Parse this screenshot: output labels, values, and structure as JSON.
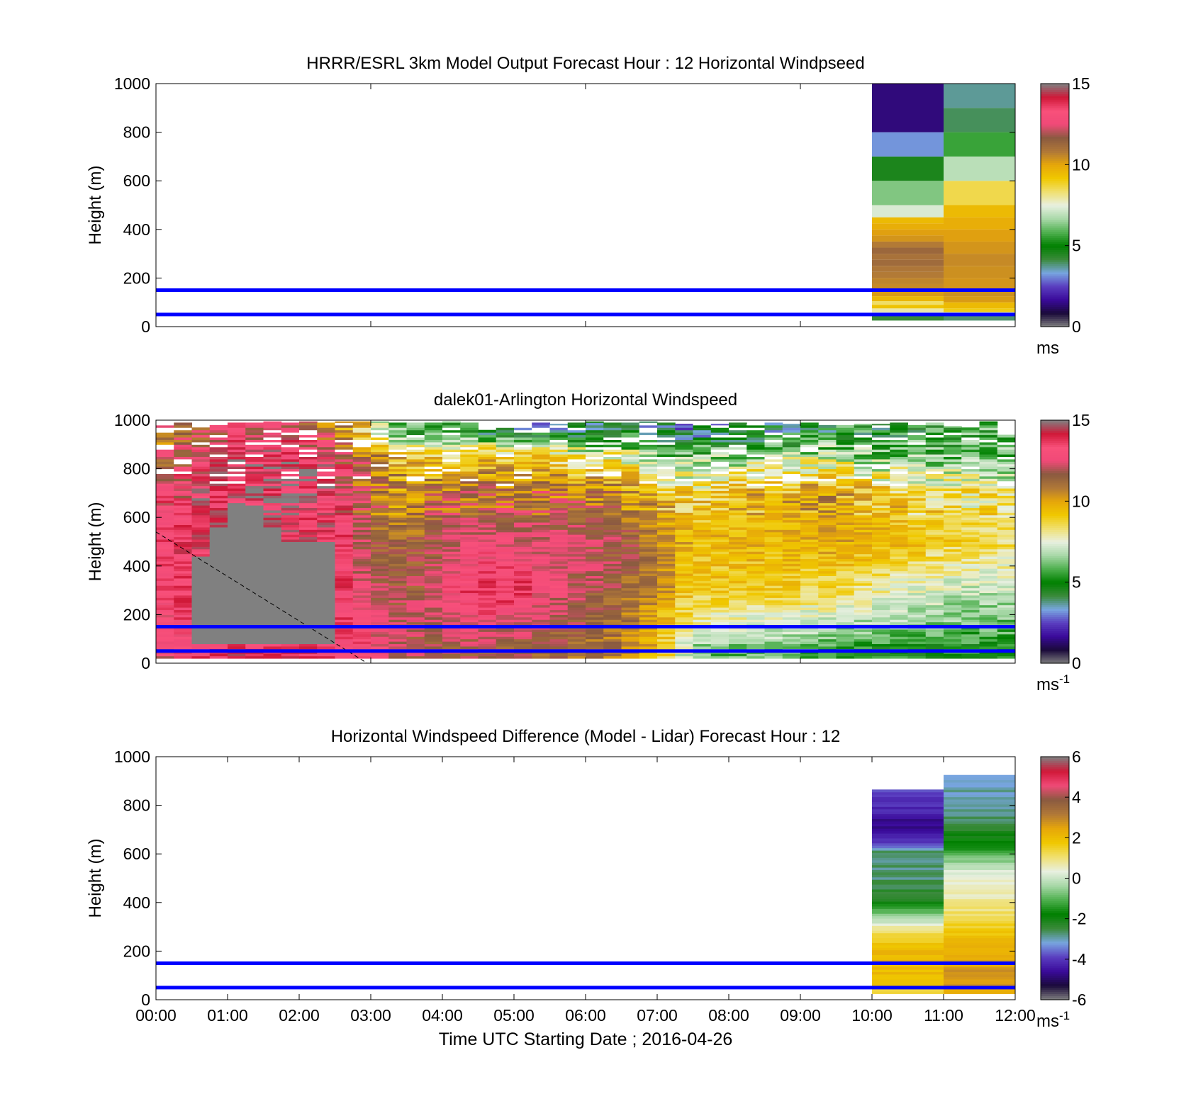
{
  "colors": {
    "speed_scale": [
      "#808080",
      "#1a0a3a",
      "#3a0a9a",
      "#5a3ec0",
      "#78a6e0",
      "#3a8a3a",
      "#008000",
      "#4fb04f",
      "#a8d8a8",
      "#e8f0e0",
      "#f0e070",
      "#f0c800",
      "#e6a60a",
      "#b07838",
      "#8a5a40",
      "#f04a78",
      "#f8507a",
      "#d01838",
      "#808080"
    ],
    "diff_scale": [
      "#808080",
      "#1a0a3a",
      "#3a0a9a",
      "#5a3ec0",
      "#78a6e0",
      "#3a8a3a",
      "#008000",
      "#4fb04f",
      "#a8d8a8",
      "#e8f0e0",
      "#f0e070",
      "#f0c800",
      "#e6a60a",
      "#b07838",
      "#8a5a40",
      "#f04a78",
      "#d01838",
      "#808080"
    ],
    "reference_lines": "#0000ff",
    "no_data": "#808080"
  },
  "x_axis": {
    "label": "Time UTC  Starting Date ; 2016-04-26",
    "ticks": [
      "00:00",
      "01:00",
      "02:00",
      "03:00",
      "04:00",
      "05:00",
      "06:00",
      "07:00",
      "08:00",
      "09:00",
      "10:00",
      "11:00",
      "12:00"
    ]
  },
  "chart_data": [
    {
      "type": "heatmap",
      "title": "HRRR/ESRL 3km Model Output   Forecast Hour : 12 Horizontal Windpseed",
      "ylabel": "Height (m)",
      "ylim": [
        0,
        1000
      ],
      "yticks": [
        "0",
        "200",
        "400",
        "600",
        "800",
        "1000"
      ],
      "xlim_hours": [
        0,
        12
      ],
      "colorbar": {
        "min": 0,
        "max": 15,
        "ticks": [
          "0",
          "5",
          "10",
          "15"
        ],
        "unit": "ms",
        "unit_sup": ""
      },
      "reference_lines_m": [
        50,
        150
      ],
      "columns": [
        {
          "x_start": 10,
          "x_end": 11,
          "cells": [
            {
              "z0": 25,
              "z1": 45,
              "v": 4.2
            },
            {
              "z0": 45,
              "z1": 60,
              "v": 7.4
            },
            {
              "z0": 60,
              "z1": 75,
              "v": 7.9
            },
            {
              "z0": 75,
              "z1": 90,
              "v": 9.3
            },
            {
              "z0": 90,
              "z1": 105,
              "v": 8.4
            },
            {
              "z0": 105,
              "z1": 125,
              "v": 9.6
            },
            {
              "z0": 125,
              "z1": 150,
              "v": 10.2
            },
            {
              "z0": 150,
              "z1": 175,
              "v": 10.5
            },
            {
              "z0": 175,
              "z1": 200,
              "v": 10.6
            },
            {
              "z0": 200,
              "z1": 225,
              "v": 10.8
            },
            {
              "z0": 225,
              "z1": 250,
              "v": 10.9
            },
            {
              "z0": 250,
              "z1": 275,
              "v": 11.2
            },
            {
              "z0": 275,
              "z1": 300,
              "v": 11.0
            },
            {
              "z0": 300,
              "z1": 325,
              "v": 11.3
            },
            {
              "z0": 325,
              "z1": 350,
              "v": 10.8
            },
            {
              "z0": 350,
              "z1": 375,
              "v": 10.3
            },
            {
              "z0": 375,
              "z1": 400,
              "v": 10.1
            },
            {
              "z0": 400,
              "z1": 425,
              "v": 9.8
            },
            {
              "z0": 425,
              "z1": 450,
              "v": 9.5
            },
            {
              "z0": 450,
              "z1": 500,
              "v": 7.3
            },
            {
              "z0": 500,
              "z1": 600,
              "v": 6.3
            },
            {
              "z0": 600,
              "z1": 700,
              "v": 4.6
            },
            {
              "z0": 700,
              "z1": 800,
              "v": 3.2
            },
            {
              "z0": 800,
              "z1": 1000,
              "v": 1.4
            }
          ]
        },
        {
          "x_start": 11,
          "x_end": 12,
          "cells": [
            {
              "z0": 25,
              "z1": 45,
              "v": 3.9
            },
            {
              "z0": 45,
              "z1": 60,
              "v": 7.2
            },
            {
              "z0": 60,
              "z1": 75,
              "v": 9.0
            },
            {
              "z0": 75,
              "z1": 100,
              "v": 9.5
            },
            {
              "z0": 100,
              "z1": 125,
              "v": 10.2
            },
            {
              "z0": 125,
              "z1": 150,
              "v": 10.4
            },
            {
              "z0": 150,
              "z1": 200,
              "v": 10.3
            },
            {
              "z0": 200,
              "z1": 250,
              "v": 10.4
            },
            {
              "z0": 250,
              "z1": 300,
              "v": 10.5
            },
            {
              "z0": 300,
              "z1": 350,
              "v": 10.3
            },
            {
              "z0": 350,
              "z1": 400,
              "v": 10.1
            },
            {
              "z0": 400,
              "z1": 450,
              "v": 9.8
            },
            {
              "z0": 450,
              "z1": 500,
              "v": 9.5
            },
            {
              "z0": 500,
              "z1": 600,
              "v": 8.6
            },
            {
              "z0": 600,
              "z1": 700,
              "v": 6.9
            },
            {
              "z0": 700,
              "z1": 800,
              "v": 5.6
            },
            {
              "z0": 800,
              "z1": 900,
              "v": 4.0
            },
            {
              "z0": 900,
              "z1": 1000,
              "v": 3.7
            }
          ]
        }
      ]
    },
    {
      "type": "heatmap",
      "title": "dalek01-Arlington  Horizontal Windspeed",
      "ylabel": "Height (m)",
      "ylim": [
        0,
        1000
      ],
      "yticks": [
        "0",
        "200",
        "400",
        "600",
        "800",
        "1000"
      ],
      "xlim_hours": [
        0,
        12
      ],
      "colorbar": {
        "min": 0,
        "max": 15,
        "ticks": [
          "0",
          "5",
          "10",
          "15"
        ],
        "unit": "ms",
        "unit_sup": "-1"
      },
      "reference_lines_m": [
        50,
        150
      ],
      "dashed_line": {
        "x0": 0,
        "z0": 540,
        "x1": 2.95,
        "z1": 0
      },
      "blocked_region": [
        {
          "x_start": 0.55,
          "x_end": 0.85,
          "top_m": 440
        },
        {
          "x_start": 0.85,
          "x_end": 1.1,
          "top_m": 560
        },
        {
          "x_start": 1.1,
          "x_end": 1.6,
          "top_m": 650
        },
        {
          "x_start": 1.6,
          "x_end": 1.85,
          "top_m": 560
        },
        {
          "x_start": 1.85,
          "x_end": 2.1,
          "top_m": 500
        },
        {
          "x_start": 2.1,
          "x_end": 2.6,
          "top_m": 500
        }
      ],
      "blocked_bottom_m": 80,
      "time_step_hours": 0.25,
      "column_top_m": [
        990,
        990,
        970,
        980,
        990,
        990,
        995,
        990,
        995,
        990,
        995,
        995,
        995,
        990,
        990,
        990,
        995,
        990,
        960,
        980,
        975,
        990,
        985,
        990,
        995,
        990,
        990,
        995,
        990,
        985,
        990,
        985,
        990,
        985,
        990,
        985,
        990,
        980,
        980,
        985,
        985,
        990,
        980,
        990,
        975,
        970,
        995,
        940
      ],
      "profile_hours": [
        0,
        1,
        2,
        2.5,
        3,
        3.5,
        4,
        4.5,
        5,
        5.5,
        6,
        6.5,
        7,
        7.5,
        8,
        8.5,
        9,
        9.5,
        10,
        10.5,
        11,
        11.5,
        12
      ],
      "profile_heights_m": [
        50,
        150,
        300,
        500,
        700,
        850,
        950
      ],
      "profiles_ms": [
        [
          12.5,
          12.8,
          13.0,
          13.2,
          12.5,
          11.5,
          11.0
        ],
        [
          13.8,
          14.0,
          14.2,
          14.3,
          14.0,
          13.6,
          12.5
        ],
        [
          13.6,
          13.8,
          14.0,
          14.2,
          14.1,
          13.7,
          12.8
        ],
        [
          13.5,
          13.6,
          13.9,
          14.0,
          13.8,
          13.0,
          11.0
        ],
        [
          13.0,
          12.8,
          12.2,
          11.5,
          11.0,
          10.5,
          8.5
        ],
        [
          11.8,
          12.0,
          11.5,
          11.0,
          10.5,
          9.0,
          5.5
        ],
        [
          11.5,
          12.2,
          12.8,
          12.0,
          10.8,
          9.2,
          5.0
        ],
        [
          11.8,
          12.8,
          13.6,
          12.8,
          11.2,
          9.5,
          4.5
        ],
        [
          11.5,
          12.5,
          13.8,
          12.5,
          11.0,
          9.2,
          4.0
        ],
        [
          11.2,
          12.0,
          12.8,
          12.5,
          11.0,
          8.8,
          4.0
        ],
        [
          11.0,
          11.5,
          12.0,
          12.2,
          10.8,
          8.0,
          4.5
        ],
        [
          10.8,
          11.0,
          11.5,
          11.8,
          10.5,
          8.0,
          4.5
        ],
        [
          9.5,
          9.8,
          10.5,
          10.8,
          9.5,
          6.0,
          4.0
        ],
        [
          6.5,
          7.8,
          9.0,
          9.5,
          8.5,
          6.0,
          3.5
        ],
        [
          6.0,
          7.5,
          9.0,
          9.6,
          9.0,
          6.5,
          4.0
        ],
        [
          6.2,
          7.2,
          9.0,
          9.7,
          9.5,
          6.8,
          4.0
        ],
        [
          6.0,
          7.0,
          8.8,
          9.8,
          9.8,
          7.0,
          4.5
        ],
        [
          5.5,
          7.0,
          8.5,
          10.0,
          10.2,
          7.2,
          5.0
        ],
        [
          5.0,
          6.5,
          8.0,
          9.8,
          9.0,
          6.5,
          5.0
        ],
        [
          5.2,
          6.5,
          7.5,
          9.5,
          8.8,
          6.2,
          5.2
        ],
        [
          5.0,
          6.2,
          7.2,
          9.0,
          8.5,
          6.0,
          5.5
        ],
        [
          5.2,
          6.0,
          7.0,
          8.6,
          8.2,
          6.0,
          5.5
        ],
        [
          5.0,
          6.0,
          7.0,
          8.5,
          8.0,
          6.0,
          5.5
        ]
      ]
    },
    {
      "type": "heatmap",
      "title": "Horizontal Windspeed Difference (Model - Lidar) Forecast Hour : 12",
      "ylabel": "Height (m)",
      "ylim": [
        0,
        1000
      ],
      "yticks": [
        "0",
        "200",
        "400",
        "600",
        "800",
        "1000"
      ],
      "xlim_hours": [
        0,
        12
      ],
      "colorbar": {
        "min": -6,
        "max": 6,
        "ticks": [
          "-6",
          "-4",
          "-2",
          "0",
          "2",
          "4",
          "6"
        ],
        "unit": "ms",
        "unit_sup": "-1"
      },
      "reference_lines_m": [
        50,
        150
      ],
      "columns": [
        {
          "x_start": 10,
          "x_end": 11,
          "top_m": 865,
          "profile_heights_m": [
            30,
            100,
            200,
            280,
            330,
            400,
            500,
            600,
            650,
            700,
            780,
            840,
            865
          ],
          "profile_ms": [
            1.5,
            2.0,
            2.2,
            1.0,
            -0.2,
            -2.0,
            -2.8,
            -2.6,
            -4.2,
            -4.8,
            -4.2,
            -3.8,
            -3.5
          ]
        },
        {
          "x_start": 11,
          "x_end": 12,
          "top_m": 925,
          "profile_heights_m": [
            30,
            100,
            200,
            300,
            400,
            500,
            540,
            600,
            700,
            800,
            900,
            925
          ],
          "profile_ms": [
            2.5,
            2.8,
            2.3,
            1.5,
            0.8,
            0.3,
            0.0,
            -1.2,
            -2.3,
            -3.0,
            -3.0,
            -3.0
          ]
        }
      ]
    }
  ]
}
